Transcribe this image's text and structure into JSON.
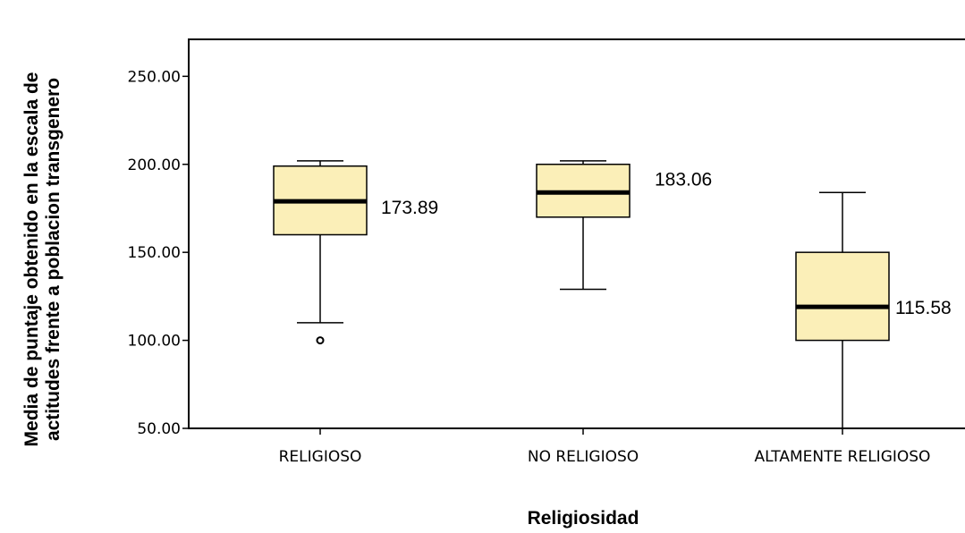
{
  "chart_data": {
    "type": "boxplot",
    "xlabel": "Religiosidad",
    "ylabel_lines": [
      "Media de puntaje obtenido en la escala de",
      "actitudes frente a poblacion transgenero"
    ],
    "ylim": [
      50,
      271
    ],
    "yticks": [
      50,
      100,
      150,
      200,
      250
    ],
    "ytick_labels": [
      "50.00",
      "100.00",
      "150.00",
      "200.00",
      "250.00"
    ],
    "box_fill": "#FBEFB8",
    "grid": false,
    "categories": [
      "RELIGIOSO",
      "NO RELIGIOSO",
      "ALTAMENTE RELIGIOSO"
    ],
    "boxes": [
      {
        "category": "RELIGIOSO",
        "whisker_low": 110,
        "q1": 160,
        "median": 179,
        "q3": 199,
        "whisker_high": 202,
        "outliers": [
          100
        ],
        "label": "173.89"
      },
      {
        "category": "NO RELIGIOSO",
        "whisker_low": 129,
        "q1": 170,
        "median": 184,
        "q3": 200,
        "whisker_high": 202,
        "outliers": [],
        "label": "183.06"
      },
      {
        "category": "ALTAMENTE RELIGIOSO",
        "whisker_low": 50,
        "q1": 100,
        "median": 119,
        "q3": 150,
        "whisker_high": 184,
        "outliers": [],
        "label": "115.58"
      }
    ]
  }
}
